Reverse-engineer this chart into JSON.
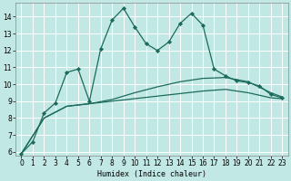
{
  "title": "",
  "xlabel": "Humidex (Indice chaleur)",
  "bg_color": "#c2e8e5",
  "grid_color": "#ffffff",
  "line_color": "#1a6b5a",
  "xlim": [
    -0.5,
    23.5
  ],
  "ylim": [
    5.8,
    14.8
  ],
  "yticks": [
    6,
    7,
    8,
    9,
    10,
    11,
    12,
    13,
    14
  ],
  "xticks": [
    0,
    1,
    2,
    3,
    4,
    5,
    6,
    7,
    8,
    9,
    10,
    11,
    12,
    13,
    14,
    15,
    16,
    17,
    18,
    19,
    20,
    21,
    22,
    23
  ],
  "series1_x": [
    0,
    1,
    2,
    3,
    4,
    5,
    6,
    7,
    8,
    9,
    10,
    11,
    12,
    13,
    14,
    15,
    16,
    17,
    18,
    19,
    20,
    21,
    22,
    23
  ],
  "series1_y": [
    5.9,
    6.6,
    8.3,
    8.9,
    10.7,
    10.9,
    9.0,
    12.1,
    13.8,
    14.5,
    13.4,
    12.4,
    12.0,
    12.5,
    13.6,
    14.2,
    13.5,
    10.9,
    10.5,
    10.2,
    10.1,
    9.9,
    9.4,
    9.2
  ],
  "series2_x": [
    0,
    2,
    4,
    6,
    8,
    10,
    12,
    14,
    16,
    18,
    20,
    22,
    23
  ],
  "series2_y": [
    5.9,
    8.0,
    8.7,
    8.85,
    9.0,
    9.15,
    9.3,
    9.45,
    9.6,
    9.7,
    9.5,
    9.2,
    9.15
  ],
  "series3_x": [
    0,
    2,
    4,
    6,
    8,
    10,
    12,
    14,
    16,
    18,
    20,
    22,
    23
  ],
  "series3_y": [
    5.9,
    8.0,
    8.7,
    8.85,
    9.1,
    9.5,
    9.85,
    10.15,
    10.35,
    10.4,
    10.15,
    9.5,
    9.25
  ]
}
